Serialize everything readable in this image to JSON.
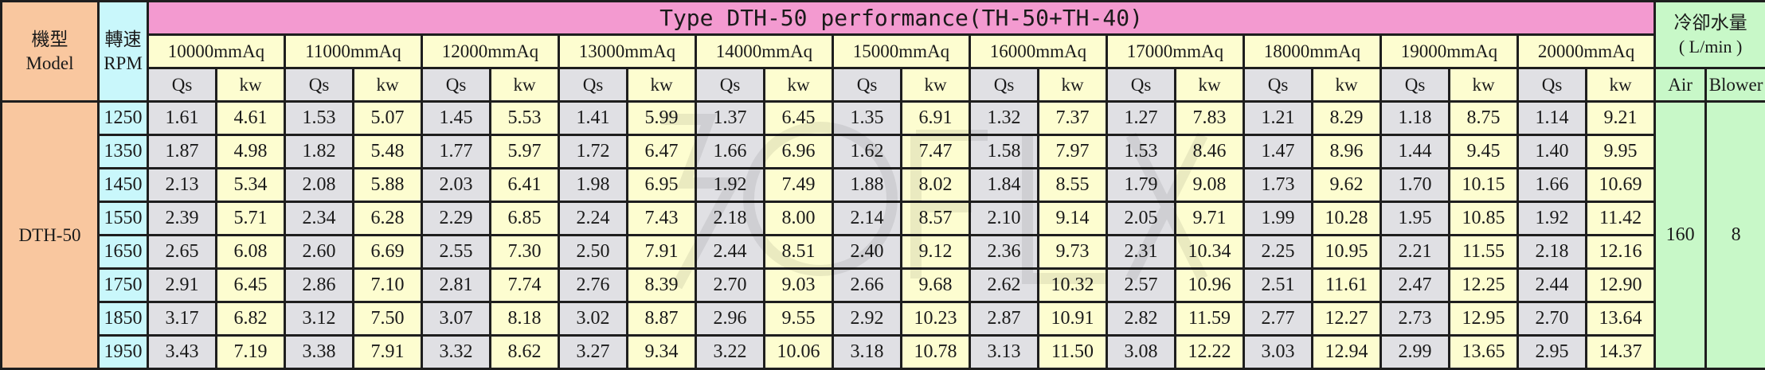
{
  "header": {
    "model_label_zh": "機型",
    "model_label_en": "Model",
    "rpm_label_zh": "轉速",
    "rpm_label_en": "RPM",
    "title": "Type DTH-50 performance(TH-50+TH-40)",
    "cooling_label_zh": "冷卻水量",
    "cooling_label_unit": "( L/min )",
    "qs_label": "Qs",
    "kw_label": "kw",
    "air_label": "Air",
    "blower_label": "Blower"
  },
  "pressures": [
    "10000mmAq",
    "11000mmAq",
    "12000mmAq",
    "13000mmAq",
    "14000mmAq",
    "15000mmAq",
    "16000mmAq",
    "17000mmAq",
    "18000mmAq",
    "19000mmAq",
    "20000mmAq"
  ],
  "model": "DTH-50",
  "cooling": {
    "air": "160",
    "blower": "8"
  },
  "rows": [
    {
      "rpm": "1250",
      "values": [
        [
          "1.61",
          "4.61"
        ],
        [
          "1.53",
          "5.07"
        ],
        [
          "1.45",
          "5.53"
        ],
        [
          "1.41",
          "5.99"
        ],
        [
          "1.37",
          "6.45"
        ],
        [
          "1.35",
          "6.91"
        ],
        [
          "1.32",
          "7.37"
        ],
        [
          "1.27",
          "7.83"
        ],
        [
          "1.21",
          "8.29"
        ],
        [
          "1.18",
          "8.75"
        ],
        [
          "1.14",
          "9.21"
        ]
      ]
    },
    {
      "rpm": "1350",
      "values": [
        [
          "1.87",
          "4.98"
        ],
        [
          "1.82",
          "5.48"
        ],
        [
          "1.77",
          "5.97"
        ],
        [
          "1.72",
          "6.47"
        ],
        [
          "1.66",
          "6.96"
        ],
        [
          "1.62",
          "7.47"
        ],
        [
          "1.58",
          "7.97"
        ],
        [
          "1.53",
          "8.46"
        ],
        [
          "1.47",
          "8.96"
        ],
        [
          "1.44",
          "9.45"
        ],
        [
          "1.40",
          "9.95"
        ]
      ]
    },
    {
      "rpm": "1450",
      "values": [
        [
          "2.13",
          "5.34"
        ],
        [
          "2.08",
          "5.88"
        ],
        [
          "2.03",
          "6.41"
        ],
        [
          "1.98",
          "6.95"
        ],
        [
          "1.92",
          "7.49"
        ],
        [
          "1.88",
          "8.02"
        ],
        [
          "1.84",
          "8.55"
        ],
        [
          "1.79",
          "9.08"
        ],
        [
          "1.73",
          "9.62"
        ],
        [
          "1.70",
          "10.15"
        ],
        [
          "1.66",
          "10.69"
        ]
      ]
    },
    {
      "rpm": "1550",
      "values": [
        [
          "2.39",
          "5.71"
        ],
        [
          "2.34",
          "6.28"
        ],
        [
          "2.29",
          "6.85"
        ],
        [
          "2.24",
          "7.43"
        ],
        [
          "2.18",
          "8.00"
        ],
        [
          "2.14",
          "8.57"
        ],
        [
          "2.10",
          "9.14"
        ],
        [
          "2.05",
          "9.71"
        ],
        [
          "1.99",
          "10.28"
        ],
        [
          "1.95",
          "10.85"
        ],
        [
          "1.92",
          "11.42"
        ]
      ]
    },
    {
      "rpm": "1650",
      "values": [
        [
          "2.65",
          "6.08"
        ],
        [
          "2.60",
          "6.69"
        ],
        [
          "2.55",
          "7.30"
        ],
        [
          "2.50",
          "7.91"
        ],
        [
          "2.44",
          "8.51"
        ],
        [
          "2.40",
          "9.12"
        ],
        [
          "2.36",
          "9.73"
        ],
        [
          "2.31",
          "10.34"
        ],
        [
          "2.25",
          "10.95"
        ],
        [
          "2.21",
          "11.55"
        ],
        [
          "2.18",
          "12.16"
        ]
      ]
    },
    {
      "rpm": "1750",
      "values": [
        [
          "2.91",
          "6.45"
        ],
        [
          "2.86",
          "7.10"
        ],
        [
          "2.81",
          "7.74"
        ],
        [
          "2.76",
          "8.39"
        ],
        [
          "2.70",
          "9.03"
        ],
        [
          "2.66",
          "9.68"
        ],
        [
          "2.62",
          "10.32"
        ],
        [
          "2.57",
          "10.96"
        ],
        [
          "2.51",
          "11.61"
        ],
        [
          "2.47",
          "12.25"
        ],
        [
          "2.44",
          "12.90"
        ]
      ]
    },
    {
      "rpm": "1850",
      "values": [
        [
          "3.17",
          "6.82"
        ],
        [
          "3.12",
          "7.50"
        ],
        [
          "3.07",
          "8.18"
        ],
        [
          "3.02",
          "8.87"
        ],
        [
          "2.96",
          "9.55"
        ],
        [
          "2.92",
          "10.23"
        ],
        [
          "2.87",
          "10.91"
        ],
        [
          "2.82",
          "11.59"
        ],
        [
          "2.77",
          "12.27"
        ],
        [
          "2.73",
          "12.95"
        ],
        [
          "2.70",
          "13.64"
        ]
      ]
    },
    {
      "rpm": "1950",
      "values": [
        [
          "3.43",
          "7.19"
        ],
        [
          "3.38",
          "7.91"
        ],
        [
          "3.32",
          "8.62"
        ],
        [
          "3.27",
          "9.34"
        ],
        [
          "3.22",
          "10.06"
        ],
        [
          "3.18",
          "10.78"
        ],
        [
          "3.13",
          "11.50"
        ],
        [
          "3.08",
          "12.22"
        ],
        [
          "3.03",
          "12.94"
        ],
        [
          "2.99",
          "13.65"
        ],
        [
          "2.95",
          "14.37"
        ]
      ]
    }
  ]
}
